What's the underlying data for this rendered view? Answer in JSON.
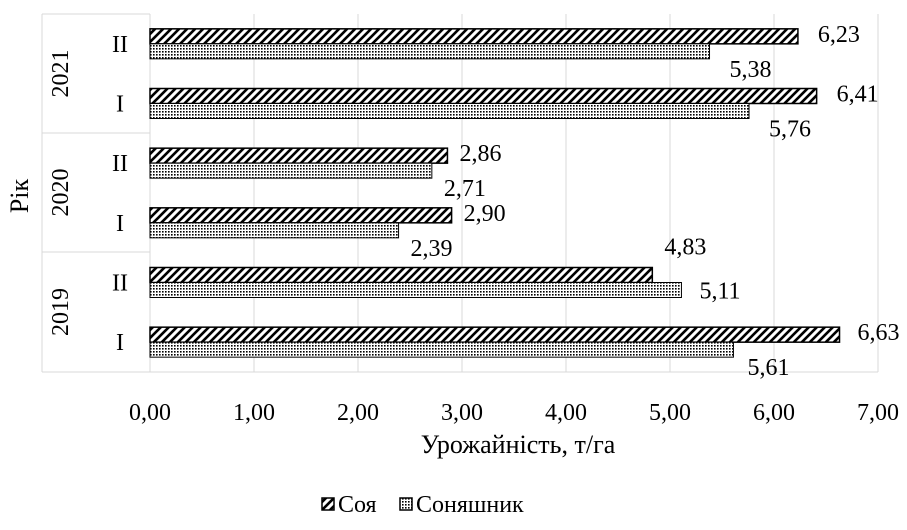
{
  "chart_data": {
    "type": "bar",
    "orientation": "horizontal",
    "title": "",
    "xlabel": "Урожайність, т/га",
    "ylabel": "Рік",
    "xlim": [
      0,
      7
    ],
    "x_ticks": [
      "0,00",
      "1,00",
      "2,00",
      "3,00",
      "4,00",
      "5,00",
      "6,00",
      "7,00"
    ],
    "grid": "vertical",
    "groups": [
      {
        "year": "2021",
        "categories": [
          "II",
          "I"
        ]
      },
      {
        "year": "2020",
        "categories": [
          "II",
          "I"
        ]
      },
      {
        "year": "2019",
        "categories": [
          "II",
          "I"
        ]
      }
    ],
    "series": [
      {
        "name": "Соя",
        "pattern": "diagonal-stripes",
        "values": [
          6.23,
          6.41,
          2.86,
          2.9,
          4.83,
          6.63
        ],
        "labels": [
          "6,23",
          "6,41",
          "2,86",
          "2,90",
          "4,83",
          "6,63"
        ]
      },
      {
        "name": "Соняшник",
        "pattern": "checkered",
        "values": [
          5.38,
          5.76,
          2.71,
          2.39,
          5.11,
          5.61
        ],
        "labels": [
          "5,38",
          "5,76",
          "2,71",
          "2,39",
          "5,11",
          "5,61"
        ]
      }
    ],
    "legend_position": "bottom"
  }
}
